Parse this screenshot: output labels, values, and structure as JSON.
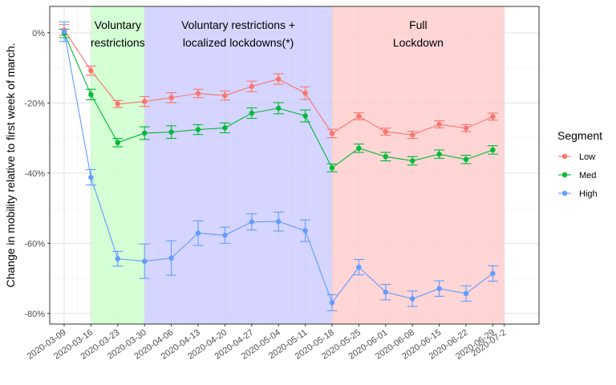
{
  "chart_data": {
    "type": "line",
    "title": "",
    "xlabel": "",
    "ylabel": "Change in mobility relative to first week of march.",
    "x": [
      "2020-03-09",
      "2020-03-16",
      "2020-03-23",
      "2020-03-30",
      "2020-04-06",
      "2020-04-13",
      "2020-04-20",
      "2020-04-27",
      "2020-05-04",
      "2020-05-11",
      "2020-05-18",
      "2020-05-25",
      "2020-06-01",
      "2020-06-08",
      "2020-06-15",
      "2020-06-22",
      "2020-06-29"
    ],
    "x_ticks": [
      "2020-03-09",
      "2020-03-16",
      "2020-03-23",
      "2020-03-30",
      "2020-04-06",
      "2020-04-13",
      "2020-04-20",
      "2020-04-27",
      "2020-05-04",
      "2020-05-11",
      "2020-05-18",
      "2020-05-25",
      "2020-06-01",
      "2020-06-08",
      "2020-06-15",
      "2020-06-22",
      "2020-06-29",
      "2020-07-2"
    ],
    "y_ticks": [
      0,
      -20,
      -40,
      -60,
      -80
    ],
    "y_tick_labels": [
      "0%",
      "-20%",
      "-40%",
      "-60%",
      "-80%"
    ],
    "ylim": [
      -83,
      7.5
    ],
    "grid": true,
    "legend": {
      "title": "Segment",
      "placement": "right"
    },
    "bands": [
      {
        "label_lines": [
          "Voluntary",
          "restrictions"
        ],
        "from": "2020-03-16",
        "to": "2020-03-30",
        "color": "#ccffcc"
      },
      {
        "label_lines": [
          "Voluntary restrictions +",
          "localized lockdowns(*)"
        ],
        "from": "2020-03-30",
        "to": "2020-05-18",
        "color": "#ccccff"
      },
      {
        "label_lines": [
          "Full",
          "Lockdown"
        ],
        "from": "2020-05-18",
        "to": "2020-07-2",
        "color": "#ffcccc"
      }
    ],
    "series": [
      {
        "name": "Low",
        "color": "#F8766D",
        "values": [
          0.8,
          -10.8,
          -20.3,
          -19.6,
          -18.5,
          -17.3,
          -17.9,
          -15.3,
          -13.2,
          -17.2,
          -28.7,
          -23.8,
          -28.2,
          -29.1,
          -26.1,
          -27.2,
          -23.9
        ],
        "err": [
          1.5,
          1.3,
          1.0,
          1.4,
          1.4,
          1.2,
          1.3,
          1.5,
          1.5,
          1.8,
          1.2,
          1.0,
          1.0,
          1.0,
          1.0,
          1.0,
          1.0
        ]
      },
      {
        "name": "Med",
        "color": "#00BA38",
        "values": [
          -0.2,
          -17.6,
          -31.3,
          -28.6,
          -28.3,
          -27.6,
          -27.1,
          -22.9,
          -21.5,
          -23.7,
          -38.5,
          -32.9,
          -35.3,
          -36.5,
          -34.6,
          -36.1,
          -33.4
        ],
        "err": [
          1.2,
          1.5,
          1.2,
          1.8,
          1.8,
          1.4,
          1.4,
          1.5,
          1.6,
          1.7,
          1.1,
          1.2,
          1.2,
          1.2,
          1.2,
          1.2,
          1.2
        ]
      },
      {
        "name": "High",
        "color": "#619CFF",
        "values": [
          0.3,
          -41.2,
          -64.4,
          -65.1,
          -64.2,
          -57.1,
          -57.7,
          -53.9,
          -53.8,
          -56.4,
          -76.9,
          -66.8,
          -73.9,
          -75.8,
          -72.9,
          -74.3,
          -68.6
        ],
        "err": [
          2.8,
          2.2,
          2.1,
          4.9,
          4.9,
          3.5,
          2.3,
          2.3,
          2.7,
          3.1,
          2.3,
          2.2,
          2.2,
          2.2,
          2.2,
          2.2,
          2.2
        ]
      }
    ]
  }
}
